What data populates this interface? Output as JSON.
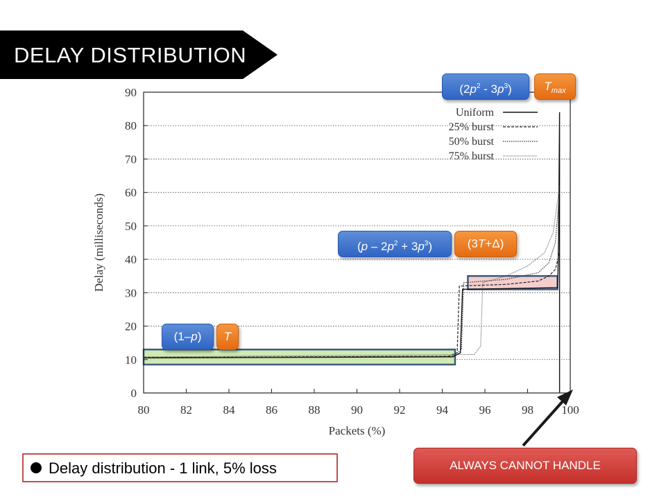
{
  "slide": {
    "title": "DELAY DISTRIBUTION",
    "caption": "Delay distribution - 1 link, 5% loss",
    "callout_button": "ALWAYS CANNOT HANDLE"
  },
  "badges": {
    "high_prob": {
      "base": "(2",
      "p1": "p",
      "e1": "2",
      "mid": " - 3",
      "p2": "p",
      "e2": "3",
      "end": ")"
    },
    "tmax": {
      "t": "T",
      "sub": "max"
    },
    "mid_prob": {
      "lead": "(",
      "p0": "p",
      "mid1": " – 2",
      "p1": "p",
      "e1": "2",
      "mid2": " + 3",
      "p2": "p",
      "e2": "3",
      "end": ")"
    },
    "mid_delay": {
      "lead": "(3",
      "t": "T",
      "end": "+Δ)"
    },
    "low_prob": {
      "lead": "(1–",
      "p": "p",
      "end": ")"
    },
    "low_delay": {
      "t": "T"
    }
  },
  "colors": {
    "banner": "#000000",
    "blue_badge": "#3b6fcb",
    "orange_badge": "#ed7d31",
    "red_button": "#cd3d38",
    "green_region": "#c7e6a5",
    "pink_region": "#f2c4c4",
    "region_border": "#3d5a80"
  },
  "chart_data": {
    "type": "line",
    "xlabel": "Packets (%)",
    "ylabel": "Delay (milliseconds)",
    "xlim": [
      80,
      100
    ],
    "ylim": [
      0,
      90
    ],
    "xticks": [
      "80",
      "82",
      "84",
      "86",
      "88",
      "90",
      "92",
      "94",
      "96",
      "98",
      "100"
    ],
    "yticks": [
      "0",
      "10",
      "20",
      "30",
      "40",
      "50",
      "60",
      "70",
      "80",
      "90"
    ],
    "grid": "horizontal dotted",
    "legend_position": "top-right",
    "series": [
      {
        "name": "Uniform",
        "style": "solid",
        "x": [
          80,
          94.5,
          94.85,
          94.95,
          99.4,
          99.42,
          99.45,
          99.5,
          99.5
        ],
        "y": [
          10.5,
          10.8,
          12,
          31,
          31.5,
          35,
          45,
          84,
          0
        ]
      },
      {
        "name": "25% burst",
        "style": "dashed",
        "x": [
          80,
          94.3,
          94.7,
          94.8,
          97,
          98.5,
          99,
          99.3,
          99.5
        ],
        "y": [
          10.6,
          11,
          12,
          32,
          32.5,
          33.5,
          35,
          37,
          42
        ]
      },
      {
        "name": "50% burst",
        "style": "dotted",
        "x": [
          80,
          94.5,
          94.9,
          95.0,
          97,
          98.5,
          99,
          99.3,
          99.5
        ],
        "y": [
          10.6,
          11,
          13,
          33,
          34,
          36,
          39,
          45,
          60
        ]
      },
      {
        "name": "75% burst",
        "style": "dense-dotted",
        "x": [
          80,
          95.5,
          95.8,
          95.9,
          97,
          98,
          98.8,
          99.2,
          99.5
        ],
        "y": [
          10.8,
          11.5,
          14,
          33,
          35,
          38,
          42,
          48,
          62
        ]
      }
    ],
    "regions": [
      {
        "id": "green",
        "x": [
          80,
          94.6
        ],
        "y": [
          8.5,
          13
        ]
      },
      {
        "id": "pink",
        "x": [
          95.2,
          99.4
        ],
        "y": [
          31,
          35
        ]
      }
    ]
  }
}
